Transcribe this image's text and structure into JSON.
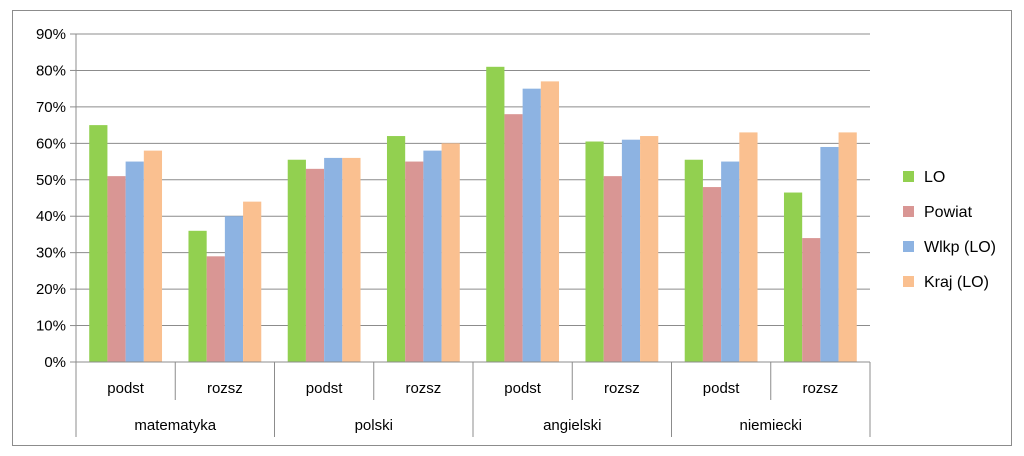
{
  "chart_data": {
    "type": "bar",
    "groups": [
      "matematyka",
      "polski",
      "angielski",
      "niemiecki"
    ],
    "subcategories": [
      "podst",
      "rozsz"
    ],
    "categories": [
      {
        "group": "matematyka",
        "sub": "podst"
      },
      {
        "group": "matematyka",
        "sub": "rozsz"
      },
      {
        "group": "polski",
        "sub": "podst"
      },
      {
        "group": "polski",
        "sub": "rozsz"
      },
      {
        "group": "angielski",
        "sub": "podst"
      },
      {
        "group": "angielski",
        "sub": "rozsz"
      },
      {
        "group": "niemiecki",
        "sub": "podst"
      },
      {
        "group": "niemiecki",
        "sub": "rozsz"
      }
    ],
    "series": [
      {
        "name": "LO",
        "color": "#92d050",
        "values": [
          65,
          36,
          55.5,
          62,
          81,
          60.5,
          55.5,
          46.5
        ]
      },
      {
        "name": "Powiat",
        "color": "#d99694",
        "values": [
          51,
          29,
          53,
          55,
          68,
          51,
          48,
          34
        ]
      },
      {
        "name": "Wlkp (LO)",
        "color": "#8db3e2",
        "values": [
          55,
          40,
          56,
          58,
          75,
          61,
          55,
          59
        ]
      },
      {
        "name": "Kraj (LO)",
        "color": "#fac090",
        "values": [
          58,
          44,
          56,
          60,
          77,
          62,
          63,
          63
        ]
      }
    ],
    "ylim": [
      0,
      90
    ],
    "ytick_step": 10,
    "ytick_format": "percent",
    "grid": true,
    "legend_position": "right",
    "title": "",
    "xlabel": "",
    "ylabel": ""
  }
}
